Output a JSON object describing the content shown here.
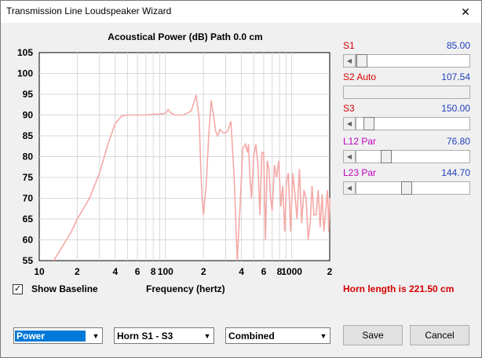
{
  "window": {
    "title": "Transmission Line Loudspeaker Wizard",
    "close_glyph": "✕"
  },
  "chart_data": {
    "type": "line",
    "title": "Acoustical Power (dB)   Path 0.0 cm",
    "xlabel": "Frequency (hertz)",
    "ylabel": "",
    "x_scale": "log",
    "xlim": [
      10,
      2000
    ],
    "ylim": [
      55,
      105
    ],
    "y_ticks": [
      105,
      100,
      95,
      90,
      85,
      80,
      75,
      70,
      65,
      60,
      55
    ],
    "x_ticks": [
      {
        "value": 10,
        "label": "10"
      },
      {
        "value": 20,
        "label": "2"
      },
      {
        "value": 40,
        "label": "4"
      },
      {
        "value": 60,
        "label": "6"
      },
      {
        "value": 80,
        "label": "8"
      },
      {
        "value": 100,
        "label": "100"
      },
      {
        "value": 200,
        "label": "2"
      },
      {
        "value": 400,
        "label": "4"
      },
      {
        "value": 600,
        "label": "6"
      },
      {
        "value": 800,
        "label": "8"
      },
      {
        "value": 1000,
        "label": "1000"
      },
      {
        "value": 2000,
        "label": "2"
      }
    ],
    "grid": true,
    "line_color": "#f4a9a6",
    "series": [
      {
        "x": [
          13,
          15,
          18,
          20,
          25,
          30,
          35,
          40,
          45,
          50,
          60,
          70,
          80,
          90,
          100,
          105,
          110,
          120,
          140,
          160,
          175,
          185,
          190,
          195,
          200,
          210,
          220,
          230,
          240,
          250,
          260,
          270,
          290,
          310,
          330,
          350,
          370,
          390,
          410,
          430,
          445,
          455,
          465,
          480,
          500,
          520,
          540,
          560,
          580,
          600,
          620,
          640,
          660,
          680,
          700,
          730,
          760,
          790,
          820,
          850,
          880,
          910,
          940,
          980,
          1020,
          1060,
          1100,
          1150,
          1200,
          1250,
          1300,
          1350,
          1400,
          1450,
          1500,
          1560,
          1620,
          1680,
          1740,
          1800,
          1860,
          1920,
          1970,
          2000
        ],
        "y": [
          55,
          58,
          62,
          65,
          70,
          76,
          83,
          88,
          89.8,
          90,
          90,
          90,
          90.2,
          90.2,
          90.4,
          91.3,
          90.5,
          90,
          90,
          91,
          94.8,
          89,
          78,
          70,
          66,
          73,
          85,
          93.5,
          90,
          86,
          85,
          86.5,
          85.6,
          86,
          88.5,
          75,
          55,
          68,
          82,
          83,
          81,
          83,
          76,
          70,
          80,
          83,
          78,
          66,
          81,
          81,
          60,
          79,
          77,
          70,
          67,
          78,
          75,
          79,
          68,
          73,
          62,
          74,
          76,
          62,
          76,
          71,
          65,
          77,
          64,
          72,
          70,
          60,
          64,
          73,
          66,
          66,
          72,
          63,
          71,
          62,
          67,
          72,
          62,
          70
        ]
      }
    ]
  },
  "sliders": [
    {
      "label": "S1",
      "value": "85.00",
      "label_color": "#d40000",
      "fraction": 0.06
    },
    {
      "label": "S2  Auto",
      "value": "107.54",
      "label_color": "#d40000",
      "fraction": -1
    },
    {
      "label": "S3",
      "value": "150.00",
      "label_color": "#d40000",
      "fraction": 0.12
    },
    {
      "label": "L12  Par",
      "value": "76.80",
      "label_color": "#c000c0",
      "fraction": 0.32
    },
    {
      "label": "L23  Par",
      "value": "144.70",
      "label_color": "#c000c0",
      "fraction": 0.6
    }
  ],
  "baseline": {
    "checked_glyph": "✓",
    "label": "Show Baseline"
  },
  "horn_length_text": "Horn length is 221.50 cm",
  "controls": {
    "combo1": "Power",
    "combo2": "Horn S1 - S3",
    "combo3": "Combined",
    "combo_arrow": "▼",
    "save_label": "Save",
    "cancel_label": "Cancel"
  }
}
